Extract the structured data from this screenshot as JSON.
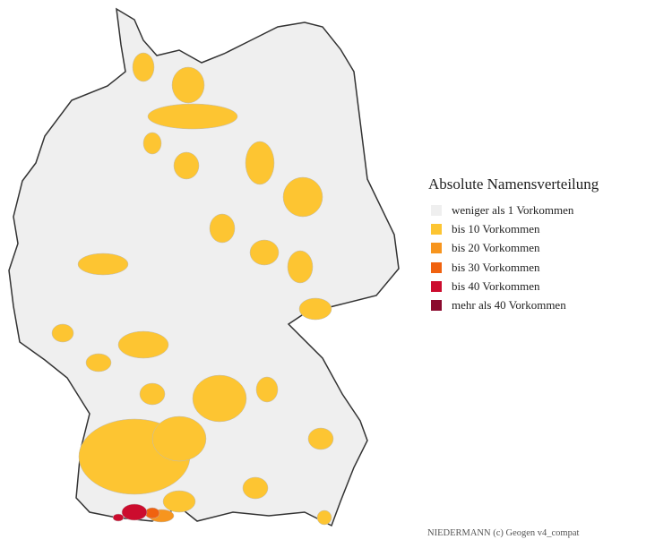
{
  "map": {
    "region": "Deutschland",
    "base_color": "#efefef",
    "border_color": "#333333"
  },
  "legend": {
    "title": "Absolute Namensverteilung",
    "items": [
      {
        "label": "weniger als 1 Vorkommen",
        "color": "#efefef"
      },
      {
        "label": "bis 10 Vorkommen",
        "color": "#fdc532"
      },
      {
        "label": "bis 20 Vorkommen",
        "color": "#f7951e"
      },
      {
        "label": "bis 30 Vorkommen",
        "color": "#f0620f"
      },
      {
        "label": "bis 40 Vorkommen",
        "color": "#cc0c2e"
      },
      {
        "label": "mehr als 40 Vorkommen",
        "color": "#8b0a2e"
      }
    ]
  },
  "footer": "NIEDERMANN (c) Geogen v4_compat"
}
